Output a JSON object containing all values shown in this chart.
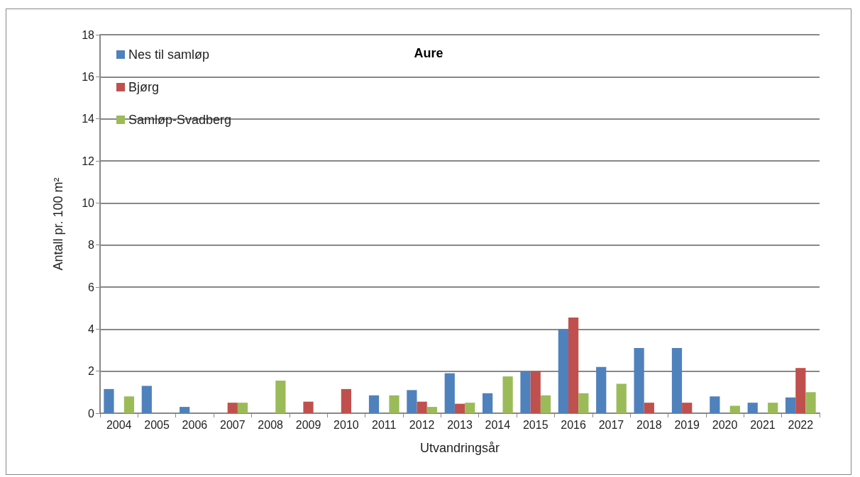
{
  "chart_data": {
    "type": "bar",
    "title": "Aure",
    "xlabel": "Utvandringsår",
    "ylabel": "Antall pr. 100 m²",
    "categories": [
      "2004",
      "2005",
      "2006",
      "2007",
      "2008",
      "2009",
      "2010",
      "2011",
      "2012",
      "2013",
      "2014",
      "2015",
      "2016",
      "2017",
      "2018",
      "2019",
      "2020",
      "2021",
      "2022"
    ],
    "series": [
      {
        "name": "Nes til samløp",
        "color": "#4f81bd",
        "values": [
          1.15,
          1.3,
          0.3,
          null,
          null,
          null,
          null,
          0.85,
          1.1,
          1.9,
          0.95,
          2.0,
          4.0,
          2.2,
          3.1,
          3.1,
          0.8,
          0.5,
          0.75
        ]
      },
      {
        "name": "Bjørg",
        "color": "#c0504d",
        "values": [
          null,
          null,
          null,
          0.5,
          null,
          0.55,
          1.15,
          null,
          0.55,
          0.45,
          null,
          2.0,
          4.55,
          null,
          0.5,
          0.5,
          null,
          null,
          2.15
        ]
      },
      {
        "name": "Samløp-Svadberg",
        "color": "#9bbb59",
        "values": [
          0.8,
          null,
          null,
          0.5,
          1.55,
          null,
          null,
          0.85,
          0.3,
          0.5,
          1.75,
          0.85,
          0.95,
          1.4,
          null,
          null,
          0.35,
          0.5,
          1.0
        ]
      }
    ],
    "ylim": [
      0,
      18
    ],
    "yticks": [
      0,
      2,
      4,
      6,
      8,
      10,
      12,
      14,
      16,
      18
    ],
    "grid": "y",
    "legend": "top left"
  }
}
